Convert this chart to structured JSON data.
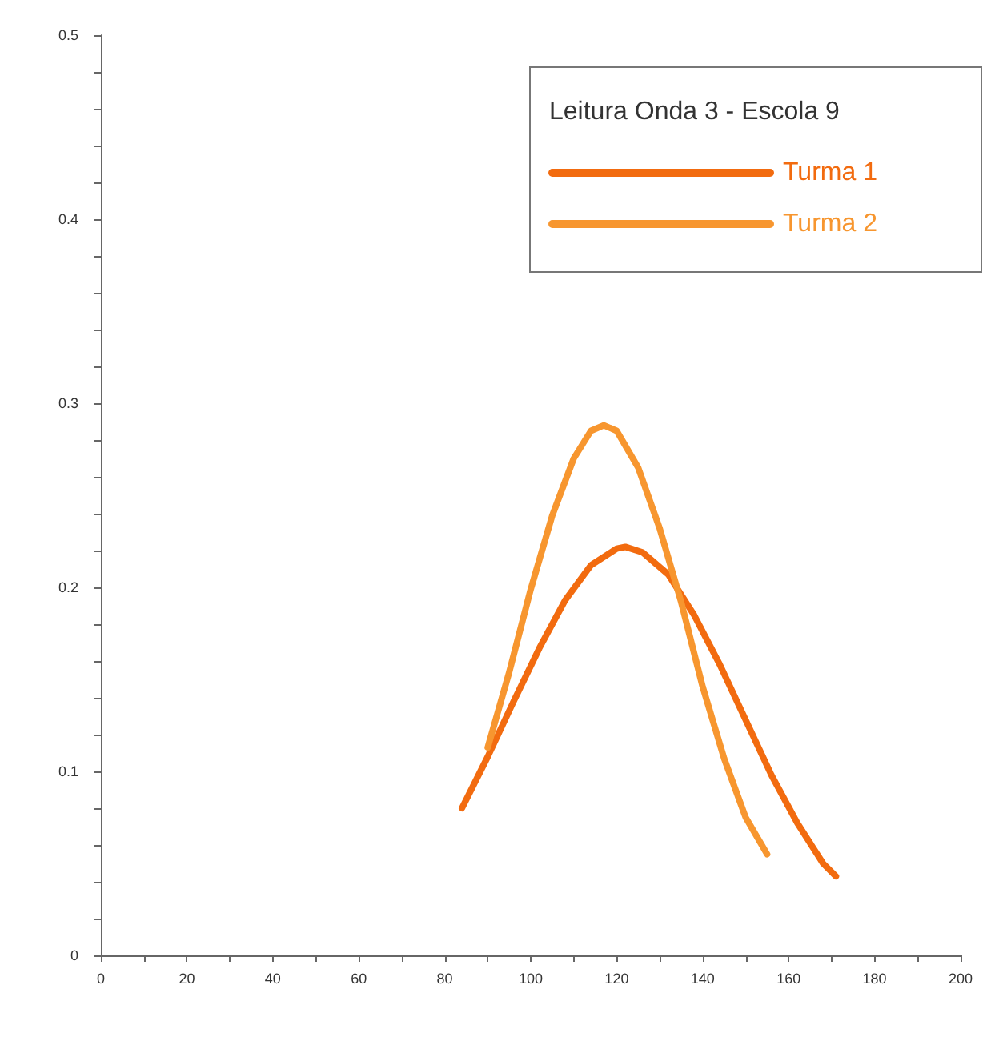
{
  "chart_data": {
    "type": "line",
    "legend_title": "Leitura Onda 3 - Escola 9",
    "legend": "top right",
    "grid": false,
    "marker": "none",
    "line_style": "solid",
    "xlim": [
      0,
      200
    ],
    "ylim": [
      0,
      0.5
    ],
    "xticks": [
      0,
      {
        "value": 10,
        "label": null
      },
      20,
      {
        "value": 30,
        "label": null
      },
      40,
      {
        "value": 50,
        "label": null
      },
      60,
      {
        "value": 70,
        "label": null
      },
      80,
      {
        "value": 90,
        "label": null
      },
      100,
      {
        "value": 110,
        "label": null
      },
      120,
      {
        "value": 130,
        "label": null
      },
      140,
      {
        "value": 150,
        "label": null
      },
      160,
      {
        "value": 170,
        "label": null
      },
      180,
      {
        "value": 190,
        "label": null
      },
      200
    ],
    "yticks": [
      0,
      {
        "value": 0.02,
        "label": null
      },
      {
        "value": 0.04,
        "label": null
      },
      {
        "value": 0.06,
        "label": null
      },
      {
        "value": 0.08,
        "label": null
      },
      0.1,
      {
        "value": 0.12,
        "label": null
      },
      {
        "value": 0.14,
        "label": null
      },
      {
        "value": 0.16,
        "label": null
      },
      {
        "value": 0.18,
        "label": null
      },
      0.2,
      {
        "value": 0.22,
        "label": null
      },
      {
        "value": 0.24,
        "label": null
      },
      {
        "value": 0.26,
        "label": null
      },
      {
        "value": 0.28,
        "label": null
      },
      0.3,
      {
        "value": 0.32,
        "label": null
      },
      {
        "value": 0.34,
        "label": null
      },
      {
        "value": 0.36,
        "label": null
      },
      {
        "value": 0.38,
        "label": null
      },
      0.4,
      {
        "value": 0.42,
        "label": null
      },
      {
        "value": 0.44,
        "label": null
      },
      {
        "value": 0.46,
        "label": null
      },
      {
        "value": 0.48,
        "label": null
      },
      0.5
    ],
    "series": [
      {
        "name": "Turma 1",
        "color": "#f26b0f",
        "x": [
          84,
          90,
          96,
          102,
          108,
          114,
          120,
          122,
          126,
          132,
          138,
          144,
          150,
          156,
          162,
          168,
          171
        ],
        "values": [
          0.08,
          0.108,
          0.138,
          0.167,
          0.193,
          0.212,
          0.221,
          0.222,
          0.219,
          0.207,
          0.185,
          0.158,
          0.128,
          0.098,
          0.072,
          0.05,
          0.043
        ]
      },
      {
        "name": "Turma 2",
        "color": "#f7962f",
        "x": [
          90,
          95,
          100,
          105,
          110,
          114,
          117,
          120,
          125,
          130,
          135,
          140,
          145,
          150,
          155
        ],
        "values": [
          0.113,
          0.154,
          0.199,
          0.239,
          0.27,
          0.285,
          0.288,
          0.285,
          0.265,
          0.232,
          0.192,
          0.146,
          0.107,
          0.075,
          0.055
        ]
      }
    ]
  }
}
